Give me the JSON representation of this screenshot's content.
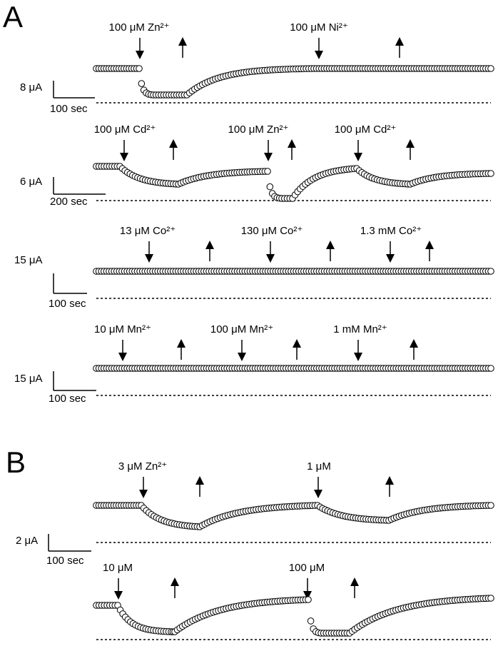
{
  "panels": [
    {
      "label": "A",
      "traces": [
        {
          "annotations": [
            "100 μM Zn²⁺",
            "100 μM Ni²⁺"
          ],
          "scale": {
            "current": "8 μA",
            "time": "100 sec"
          }
        },
        {
          "annotations": [
            "100 μM Cd²⁺",
            "100 μM Zn²⁺",
            "100 μM Cd²⁺"
          ],
          "scale": {
            "current": "6 μA",
            "time": "200 sec"
          }
        },
        {
          "annotations": [
            "13 μM Co²⁺",
            "130 μM Co²⁺",
            "1.3 mM Co²⁺"
          ],
          "scale": {
            "current": "15 μA",
            "time": "100 sec"
          }
        },
        {
          "annotations": [
            "10 μM Mn²⁺",
            "100 μM Mn²⁺",
            "1 mM Mn²⁺"
          ],
          "scale": {
            "current": "15 μA",
            "time": "100 sec"
          }
        }
      ]
    },
    {
      "label": "B",
      "traces": [
        {
          "annotations": [
            "3 μM Zn²⁺",
            "1 μM"
          ],
          "scale": {
            "current": "2 μA",
            "time": "100 sec"
          }
        },
        {
          "annotations": [
            "10 μM",
            "100 μM"
          ]
        }
      ]
    }
  ]
}
